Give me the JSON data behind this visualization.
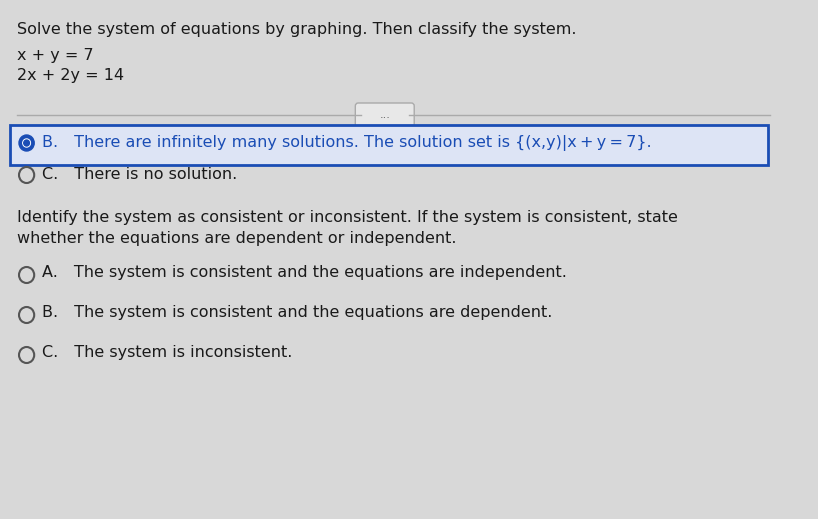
{
  "bg_color": "#d8d8d8",
  "title_text": "Solve the system of equations by graphing. Then classify the system.",
  "eq1": "x + y = 7",
  "eq2": "2x + 2y = 14",
  "divider_dots": "...",
  "option_B_selected": true,
  "option_B_text": "B. There are infinitely many solutions. The solution set is {(x,y)|x + y = 7}.",
  "option_C_text": "C. There is no solution.",
  "second_question": "Identify the system as consistent or inconsistent. If the system is consistent, state\nwhether the equations are dependent or independent.",
  "opt2_A_text": "A. The system is consistent and the equations are independent.",
  "opt2_B_text": "B. The system is consistent and the equations are dependent.",
  "opt2_C_text": "C. The system is inconsistent.",
  "selected_radio_color": "#1a4db5",
  "unselected_radio_color": "#555555",
  "text_color": "#1a1a1a",
  "highlight_border_color": "#1a4db5",
  "title_fontsize": 11.5,
  "body_fontsize": 11.5,
  "eq_fontsize": 11.5
}
